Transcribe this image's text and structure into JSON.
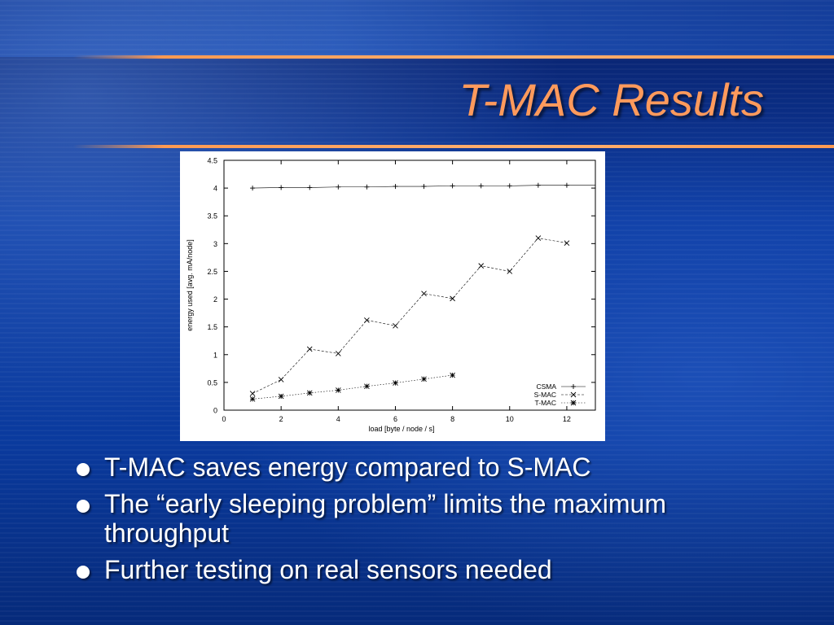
{
  "slide": {
    "title": "T-MAC Results",
    "bullets": [
      "T-MAC saves energy compared to S-MAC",
      "The “early sleeping problem” limits the maximum throughput",
      "Further testing on real sensors needed"
    ],
    "colors": {
      "title": "#ff9a5c",
      "rule": "#ff9a52",
      "background": "#0b3aa0",
      "text": "#ffffff"
    }
  },
  "chart_data": {
    "type": "line",
    "xlabel": "load [byte / node / s]",
    "ylabel": "energy used [avg. mA/node]",
    "xlim": [
      0,
      13
    ],
    "ylim": [
      0,
      4.5
    ],
    "xticks": [
      0,
      2,
      4,
      6,
      8,
      10,
      12
    ],
    "yticks": [
      0,
      0.5,
      1,
      1.5,
      2,
      2.5,
      3,
      3.5,
      4,
      4.5
    ],
    "legend_position": "bottom-right",
    "grid": false,
    "series": [
      {
        "name": "CSMA",
        "marker": "+",
        "dash": "solid",
        "x": [
          1,
          2,
          3,
          4,
          5,
          6,
          7,
          8,
          9,
          10,
          11,
          12,
          13
        ],
        "y": [
          4.0,
          4.01,
          4.01,
          4.02,
          4.02,
          4.03,
          4.03,
          4.04,
          4.04,
          4.04,
          4.05,
          4.05,
          4.05
        ]
      },
      {
        "name": "S-MAC",
        "marker": "x",
        "dash": "dashed",
        "x": [
          1,
          2,
          3,
          4,
          5,
          6,
          7,
          8,
          9,
          10,
          11,
          12
        ],
        "y": [
          0.3,
          0.55,
          1.1,
          1.02,
          1.62,
          1.52,
          2.1,
          2.01,
          2.6,
          2.5,
          3.1,
          3.01
        ]
      },
      {
        "name": "T-MAC",
        "marker": "*",
        "dash": "dotted",
        "x": [
          1,
          2,
          3,
          4,
          5,
          6,
          7,
          8
        ],
        "y": [
          0.2,
          0.25,
          0.31,
          0.36,
          0.43,
          0.49,
          0.56,
          0.63
        ]
      }
    ]
  }
}
